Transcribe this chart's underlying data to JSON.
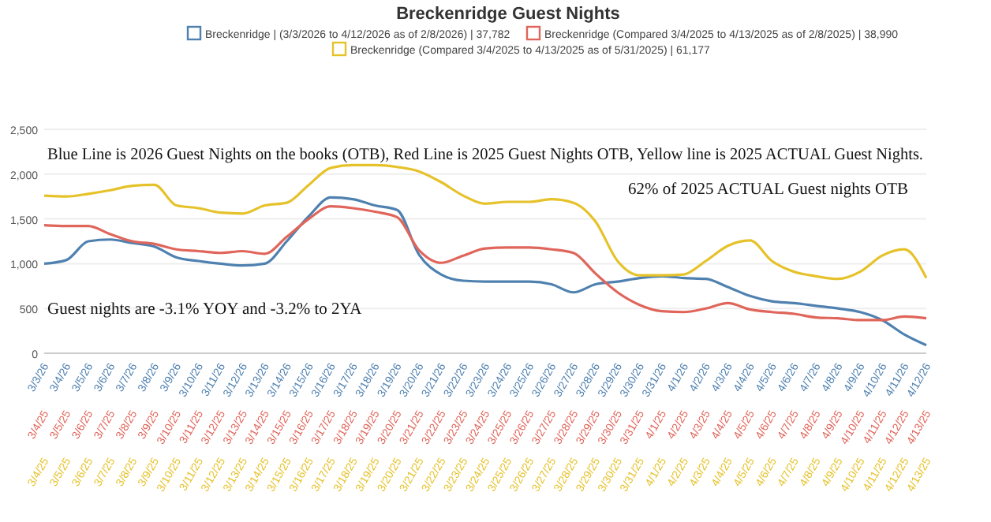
{
  "chart_data": {
    "type": "line",
    "title": "Breckenridge Guest Nights",
    "categories": [
      "3/3/26",
      "3/4/26",
      "3/5/26",
      "3/6/26",
      "3/7/26",
      "3/8/26",
      "3/9/26",
      "3/10/26",
      "3/11/26",
      "3/12/26",
      "3/13/26",
      "3/14/26",
      "3/15/26",
      "3/16/26",
      "3/17/26",
      "3/18/26",
      "3/19/26",
      "3/20/26",
      "3/21/26",
      "3/22/26",
      "3/23/26",
      "3/24/26",
      "3/25/26",
      "3/26/26",
      "3/27/26",
      "3/28/26",
      "3/29/26",
      "3/30/26",
      "3/31/26",
      "4/1/26",
      "4/2/26",
      "4/3/26",
      "4/4/26",
      "4/5/26",
      "4/6/26",
      "4/7/26",
      "4/8/26",
      "4/9/26",
      "4/10/26",
      "4/11/26",
      "4/12/26"
    ],
    "series": [
      {
        "name": "Breckenridge | (3/3/2026 to 4/12/2026 as of 2/8/2026) | 37,782",
        "color": "#4f81b0",
        "values": [
          1000,
          1040,
          1250,
          1270,
          1230,
          1190,
          1070,
          1030,
          1000,
          980,
          1000,
          1250,
          1530,
          1740,
          1720,
          1650,
          1600,
          1100,
          880,
          810,
          800,
          800,
          800,
          770,
          680,
          770,
          800,
          840,
          860,
          840,
          830,
          740,
          640,
          580,
          560,
          530,
          500,
          460,
          370,
          210,
          90
        ]
      },
      {
        "name": "Breckenridge (Compared 3/4/2025 to 4/13/2025 as of 2/8/2025) | 38,990",
        "color": "#e0655a",
        "values": [
          1430,
          1420,
          1420,
          1330,
          1250,
          1220,
          1160,
          1140,
          1120,
          1140,
          1110,
          1300,
          1500,
          1640,
          1620,
          1580,
          1520,
          1150,
          1010,
          1090,
          1170,
          1180,
          1180,
          1160,
          1120,
          890,
          680,
          540,
          470,
          460,
          500,
          560,
          490,
          460,
          440,
          400,
          390,
          370,
          370,
          410,
          390
        ]
      },
      {
        "name": "Breckenridge (Compared 3/4/2025 to 4/13/2025 as of 5/31/2025) | 61,177",
        "color": "#e6c22a",
        "values": [
          1760,
          1750,
          1780,
          1820,
          1870,
          1880,
          1650,
          1620,
          1570,
          1560,
          1650,
          1680,
          1880,
          2070,
          2100,
          2100,
          2080,
          2030,
          1910,
          1760,
          1670,
          1690,
          1690,
          1720,
          1680,
          1470,
          1030,
          870,
          870,
          880,
          1030,
          1200,
          1260,
          1030,
          910,
          860,
          830,
          910,
          1090,
          1160,
          840
        ]
      }
    ],
    "ylim": [
      0,
      2500
    ],
    "yticks": [
      0,
      500,
      {
        "value": 1000,
        "label": "1,000"
      },
      {
        "value": 1500,
        "label": "1,500"
      },
      {
        "value": 2000,
        "label": "2,000"
      },
      {
        "value": 2500,
        "label": "2,500"
      }
    ],
    "grid": "y",
    "legend": "top",
    "marker": "none",
    "line_style": "solid",
    "annotations": [
      "Blue Line is 2026 Guest Nights on the books (OTB), Red Line is 2025 Guest Nights OTB, Yellow line is 2025 ACTUAL Guest Nights.",
      "62% of 2025 ACTUAL Guest nights OTB",
      "Guest nights are -3.1% YOY and -3.2% to 2YA",
      "3/4/25",
      "3/5/25",
      "3/6/25",
      "3/7/25",
      "3/8/25",
      "3/9/25",
      "3/10/25",
      "3/11/25",
      "3/12/25",
      "3/13/25",
      "3/14/25",
      "3/15/25",
      "3/16/25",
      "3/17/25",
      "3/18/25",
      "3/19/25",
      "3/20/25",
      "3/21/25",
      "3/22/25",
      "3/23/25",
      "3/24/25",
      "3/25/25",
      "3/26/25",
      "3/27/25",
      "3/28/25",
      "3/29/25",
      "3/30/25",
      "3/31/25",
      "4/1/25",
      "4/2/25",
      "4/3/25",
      "4/4/25",
      "4/5/25",
      "4/6/25",
      "4/7/25",
      "4/8/25",
      "4/9/25",
      "4/10/25",
      "4/11/25",
      "4/12/25",
      "4/13/25",
      "3/4/25",
      "3/5/25",
      "3/6/25",
      "3/7/25",
      "3/8/25",
      "3/9/25",
      "3/10/25",
      "3/11/25",
      "3/12/25",
      "3/13/25",
      "3/14/25",
      "3/15/25",
      "3/16/25",
      "3/17/25",
      "3/18/25",
      "3/19/25",
      "3/20/25",
      "3/21/25",
      "3/22/25",
      "3/23/25",
      "3/24/25",
      "3/25/25",
      "3/26/25",
      "3/27/25",
      "3/28/25",
      "3/29/25",
      "3/30/25",
      "3/31/25",
      "4/1/25",
      "4/2/25",
      "4/3/25",
      "4/4/25",
      "4/5/25",
      "4/6/25",
      "4/7/25",
      "4/8/25",
      "4/9/25",
      "4/10/25",
      "4/11/25",
      "4/12/25",
      "4/13/25"
    ]
  }
}
